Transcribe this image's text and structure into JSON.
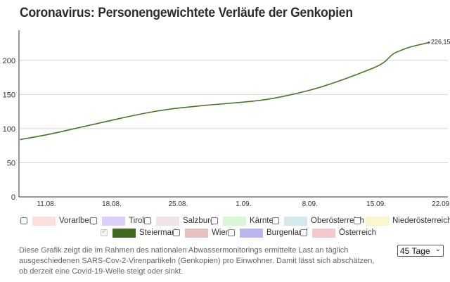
{
  "title": "Coronavirus: Personengewichtete Verläufe der Genkopien",
  "chart_data": {
    "type": "line",
    "ylim": [
      0,
      240
    ],
    "yticks": [
      0,
      50,
      100,
      150,
      200
    ],
    "xlim": [
      0,
      45
    ],
    "xticks": [
      {
        "label": "11.08.",
        "x": 2.9
      },
      {
        "label": "18.08.",
        "x": 10.1
      },
      {
        "label": "25.08.",
        "x": 17.4
      },
      {
        "label": "1.09.",
        "x": 24.6
      },
      {
        "label": "8.09.",
        "x": 31.9
      },
      {
        "label": "15.09.",
        "x": 39.2
      },
      {
        "label": "22.09.",
        "x": 46.4
      }
    ],
    "grid": true,
    "series": [
      {
        "name": "Steiermark",
        "color": "#4a7228",
        "x": [
          0,
          3,
          6,
          9,
          12,
          15,
          18,
          21,
          24,
          27,
          30,
          33,
          36,
          38,
          40,
          41,
          42,
          43,
          44,
          45
        ],
        "y": [
          84,
          91,
          100,
          109,
          118,
          126,
          131,
          135,
          138,
          142,
          150,
          160,
          174,
          184,
          195,
          210,
          215,
          220,
          223,
          226.15
        ]
      }
    ],
    "end_label": "226,15"
  },
  "legend": [
    {
      "label": "Vorarlberg",
      "color": "#fbe1dd",
      "checked": false
    },
    {
      "label": "Tirol",
      "color": "#dcd0fb",
      "checked": false
    },
    {
      "label": "Salzburg",
      "color": "#f1e3e7",
      "checked": false
    },
    {
      "label": "Kärnten",
      "color": "#d9f7d6",
      "checked": false
    },
    {
      "label": "Oberösterreich",
      "color": "#d5e8ec",
      "checked": false
    },
    {
      "label": "Niederösterreich",
      "color": "#fbf6cf",
      "checked": false
    },
    {
      "label": "Steiermark",
      "color": "#3f6b20",
      "checked": true
    },
    {
      "label": "Wien",
      "color": "#e8c0c0",
      "checked": false
    },
    {
      "label": "Burgenland",
      "color": "#bab6ef",
      "checked": false
    },
    {
      "label": "Österreich",
      "color": "#f5c8cc",
      "checked": false
    }
  ],
  "description": "Diese Grafik zeigt die im Rahmen des nationalen Abwassermonitorings ermittelte Last an täglich ausgeschiedenen SARS-Cov-2-Virenpartikeln (Genkopien) pro Einwohner. Damit lässt sich abschätzen, ob derzeit eine Covid-19-Welle steigt oder sinkt.",
  "range_select": {
    "value": "45 Tage"
  }
}
